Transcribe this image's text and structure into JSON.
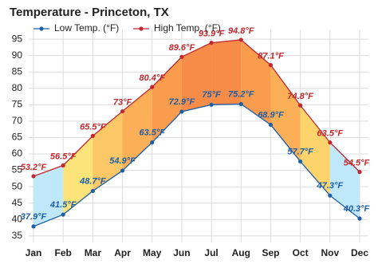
{
  "chart_data": {
    "type": "line",
    "title": "Temperature - Princeton, TX",
    "categories": [
      "Jan",
      "Feb",
      "Mar",
      "Apr",
      "May",
      "Jun",
      "Jul",
      "Aug",
      "Sep",
      "Oct",
      "Nov",
      "Dec"
    ],
    "series": [
      {
        "name": "Low Temp. (°F)",
        "color": "#1f5fa8",
        "values": [
          37.9,
          41.5,
          48.7,
          54.9,
          63.5,
          72.9,
          75,
          75.2,
          68.9,
          57.7,
          47.3,
          40.3
        ],
        "value_labels": [
          "37.9°F",
          "41.5°F",
          "48.7°F",
          "54.9°F",
          "63.5°F",
          "72.9°F",
          "75°F",
          "75.2°F",
          "68.9°F",
          "57.7°F",
          "47.3°F",
          "40.3°F"
        ]
      },
      {
        "name": "High Temp. (°F)",
        "color": "#c0282d",
        "values": [
          53.2,
          56.5,
          65.5,
          73,
          80.4,
          89.6,
          93.9,
          94.8,
          87.1,
          74.8,
          63.5,
          54.5
        ],
        "value_labels": [
          "53.2°F",
          "56.5°F",
          "65.5°F",
          "73°F",
          "80.4°F",
          "89.6°F",
          "93.9°F",
          "94.8°F",
          "87.1°F",
          "74.8°F",
          "63.5°F",
          "54.5°F"
        ]
      }
    ],
    "band_colors": [
      "#bfe8fb",
      "#fde47a",
      "#fcc766",
      "#fbb058",
      "#f99c4e",
      "#f78c48",
      "#f78c48",
      "#f99c4e",
      "#fbb058",
      "#fdd46c",
      "#bfe8fb"
    ],
    "ylim": [
      33,
      96
    ],
    "yticks": [
      35,
      40,
      45,
      50,
      55,
      60,
      65,
      70,
      75,
      80,
      85,
      90,
      95
    ],
    "grid": true
  }
}
